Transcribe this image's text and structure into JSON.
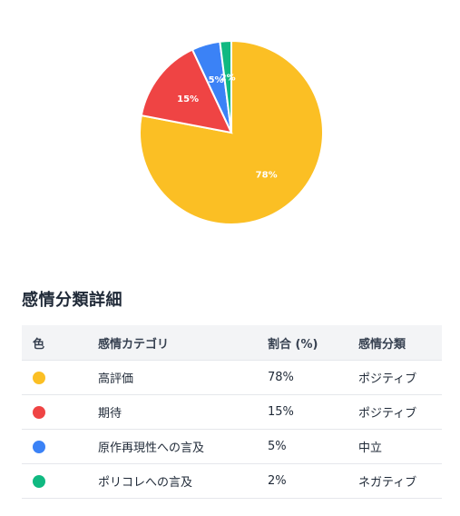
{
  "chart_data": {
    "type": "pie",
    "slices": [
      {
        "label": "高評価",
        "value": 78,
        "display": "78%",
        "color": "#fbbf24"
      },
      {
        "label": "期待",
        "value": 15,
        "display": "15%",
        "color": "#ef4444"
      },
      {
        "label": "原作再現性への言及",
        "value": 5,
        "display": "5%",
        "color": "#3b82f6"
      },
      {
        "label": "ポリコレへの言及",
        "value": 2,
        "display": "2%",
        "color": "#10b981"
      }
    ]
  },
  "table": {
    "title": "感情分類詳細",
    "headers": [
      "色",
      "感情カテゴリ",
      "割合 (%)",
      "感情分類"
    ],
    "rows": [
      {
        "color": "#fbbf24",
        "category": "高評価",
        "percent": "78%",
        "classification": "ポジティブ"
      },
      {
        "color": "#ef4444",
        "category": "期待",
        "percent": "15%",
        "classification": "ポジティブ"
      },
      {
        "color": "#3b82f6",
        "category": "原作再現性への言及",
        "percent": "5%",
        "classification": "中立"
      },
      {
        "color": "#10b981",
        "category": "ポリコレへの言及",
        "percent": "2%",
        "classification": "ネガティブ"
      }
    ]
  }
}
